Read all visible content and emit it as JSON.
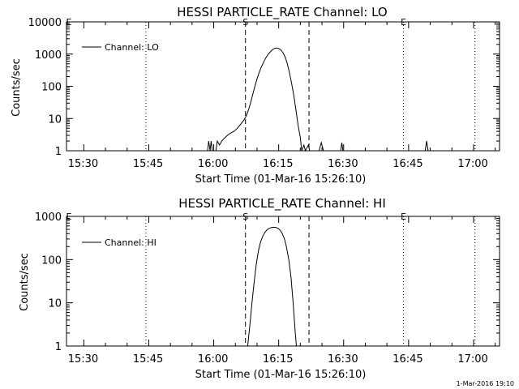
{
  "footer": {
    "timestamp": "1-Mar-2016 19:10"
  },
  "chart_data": [
    {
      "type": "line",
      "title": "HESSI PARTICLE_RATE Channel: LO",
      "xlabel": "Start Time (01-Mar-16 15:26:10)",
      "ylabel": "Counts/sec",
      "yscale": "log",
      "ylim": [
        1,
        10000
      ],
      "xlim": [
        "15:26:10",
        "17:06:10"
      ],
      "x_ticks": [
        "15:30",
        "15:45",
        "16:00",
        "16:15",
        "16:30",
        "16:45",
        "17:00"
      ],
      "y_ticks": [
        "1",
        "10",
        "100",
        "1000",
        "10000"
      ],
      "legend": {
        "position": "top-left",
        "entries": [
          "Channel: LO"
        ]
      },
      "vlines": [
        {
          "time": "15:44:30",
          "style": "dotted"
        },
        {
          "time": "16:07:30",
          "style": "dashed",
          "label": "S"
        },
        {
          "time": "16:22:10",
          "style": "dashed"
        },
        {
          "time": "16:44:00",
          "style": "dotted",
          "label": "E"
        },
        {
          "time": "17:00:30",
          "style": "dotted"
        }
      ],
      "series": [
        {
          "name": "Channel: LO",
          "points": [
            [
              "15:58:45",
              1
            ],
            [
              "15:59:00",
              2
            ],
            [
              "15:59:20",
              1
            ],
            [
              "15:59:35",
              2
            ],
            [
              "15:59:50",
              1
            ],
            [
              "16:00:40",
              1
            ],
            [
              "16:01:00",
              2
            ],
            [
              "16:01:30",
              1.5
            ],
            [
              "16:02:00",
              2
            ],
            [
              "16:02:40",
              2.5
            ],
            [
              "16:03:20",
              3
            ],
            [
              "16:04:00",
              3.5
            ],
            [
              "16:04:50",
              4
            ],
            [
              "16:05:40",
              5
            ],
            [
              "16:06:30",
              7
            ],
            [
              "16:07:10",
              9
            ],
            [
              "16:07:40",
              12
            ],
            [
              "16:08:10",
              18
            ],
            [
              "16:08:40",
              30
            ],
            [
              "16:09:10",
              55
            ],
            [
              "16:09:40",
              100
            ],
            [
              "16:10:10",
              170
            ],
            [
              "16:10:40",
              270
            ],
            [
              "16:11:10",
              400
            ],
            [
              "16:11:40",
              560
            ],
            [
              "16:12:10",
              750
            ],
            [
              "16:12:40",
              950
            ],
            [
              "16:13:10",
              1150
            ],
            [
              "16:13:40",
              1350
            ],
            [
              "16:14:10",
              1500
            ],
            [
              "16:14:40",
              1550
            ],
            [
              "16:15:10",
              1500
            ],
            [
              "16:15:40",
              1350
            ],
            [
              "16:16:10",
              1100
            ],
            [
              "16:16:40",
              800
            ],
            [
              "16:17:10",
              500
            ],
            [
              "16:17:40",
              260
            ],
            [
              "16:18:10",
              120
            ],
            [
              "16:18:40",
              50
            ],
            [
              "16:19:10",
              18
            ],
            [
              "16:19:40",
              6
            ],
            [
              "16:20:10",
              2.5
            ],
            [
              "16:20:30",
              1
            ],
            [
              "16:21:00",
              1.5
            ],
            [
              "16:21:20",
              1
            ],
            [
              "16:22:00",
              1.5
            ],
            [
              "16:22:20",
              1
            ],
            [
              "16:24:30",
              1
            ],
            [
              "16:25:00",
              1.8
            ],
            [
              "16:25:30",
              1
            ],
            [
              "16:29:30",
              1
            ],
            [
              "16:29:45",
              1.8
            ],
            [
              "16:30:00",
              1
            ],
            [
              "16:49:00",
              1
            ],
            [
              "16:49:20",
              2
            ],
            [
              "16:49:40",
              1
            ]
          ]
        }
      ]
    },
    {
      "type": "line",
      "title": "HESSI PARTICLE_RATE Channel: HI",
      "xlabel": "Start Time (01-Mar-16 15:26:10)",
      "ylabel": "Counts/sec",
      "yscale": "log",
      "ylim": [
        1,
        1000
      ],
      "xlim": [
        "15:26:10",
        "17:06:10"
      ],
      "x_ticks": [
        "15:30",
        "15:45",
        "16:00",
        "16:15",
        "16:30",
        "16:45",
        "17:00"
      ],
      "y_ticks": [
        "1",
        "10",
        "100",
        "1000"
      ],
      "legend": {
        "position": "top-left",
        "entries": [
          "Channel: HI"
        ]
      },
      "vlines": [
        {
          "time": "15:44:30",
          "style": "dotted"
        },
        {
          "time": "16:07:30",
          "style": "dashed",
          "label": "S"
        },
        {
          "time": "16:22:10",
          "style": "dashed"
        },
        {
          "time": "16:44:00",
          "style": "dotted",
          "label": "E"
        },
        {
          "time": "17:00:30",
          "style": "dotted"
        }
      ],
      "series": [
        {
          "name": "Channel: HI",
          "points": [
            [
              "16:08:00",
              1
            ],
            [
              "16:08:30",
              3
            ],
            [
              "16:09:00",
              10
            ],
            [
              "16:09:30",
              30
            ],
            [
              "16:10:00",
              80
            ],
            [
              "16:10:30",
              160
            ],
            [
              "16:11:00",
              260
            ],
            [
              "16:11:30",
              350
            ],
            [
              "16:12:00",
              430
            ],
            [
              "16:12:30",
              490
            ],
            [
              "16:13:00",
              530
            ],
            [
              "16:13:30",
              550
            ],
            [
              "16:14:00",
              560
            ],
            [
              "16:14:30",
              555
            ],
            [
              "16:15:00",
              530
            ],
            [
              "16:15:30",
              480
            ],
            [
              "16:16:00",
              400
            ],
            [
              "16:16:30",
              300
            ],
            [
              "16:17:00",
              190
            ],
            [
              "16:17:30",
              100
            ],
            [
              "16:18:00",
              40
            ],
            [
              "16:18:30",
              10
            ],
            [
              "16:19:00",
              2
            ],
            [
              "16:19:15",
              1
            ]
          ]
        }
      ]
    }
  ]
}
